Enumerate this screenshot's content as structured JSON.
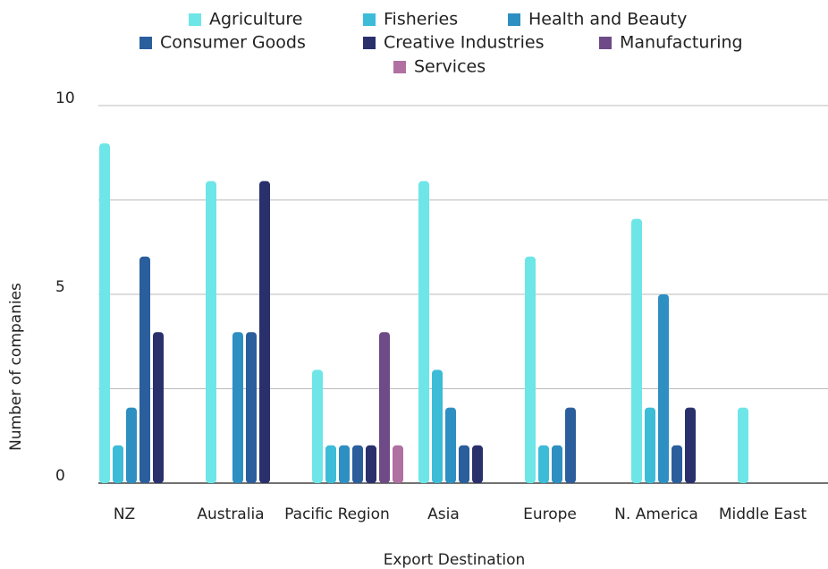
{
  "chart_data": {
    "type": "bar",
    "categories": [
      "NZ",
      "Australia",
      "Pacific Region",
      "Asia",
      "Europe",
      "N. America",
      "Middle East"
    ],
    "series": [
      {
        "name": "Agriculture",
        "color": "#6ee6e8",
        "values": [
          9,
          8,
          3,
          8,
          6,
          7,
          2
        ]
      },
      {
        "name": "Fisheries",
        "color": "#3dbcd8",
        "values": [
          1,
          0,
          1,
          3,
          1,
          2,
          0
        ]
      },
      {
        "name": "Health and Beauty",
        "color": "#2e8fc2",
        "values": [
          2,
          4,
          1,
          2,
          1,
          5,
          0
        ]
      },
      {
        "name": "Consumer Goods",
        "color": "#2b5e9c",
        "values": [
          6,
          4,
          1,
          1,
          2,
          1,
          0
        ]
      },
      {
        "name": "Creative Industries",
        "color": "#2a306c",
        "values": [
          4,
          8,
          1,
          1,
          0,
          2,
          0
        ]
      },
      {
        "name": "Manufacturing",
        "color": "#6e4a87",
        "values": [
          0,
          0,
          4,
          0,
          0,
          0,
          0
        ]
      },
      {
        "name": "Services",
        "color": "#b070a2",
        "values": [
          0,
          0,
          1,
          0,
          0,
          0,
          0
        ]
      }
    ],
    "xlabel": "Export Destination",
    "ylabel": "Number of companies",
    "ylim": [
      0,
      10
    ],
    "yticks": [
      0,
      5,
      10
    ],
    "ygrid": [
      0,
      2.5,
      5,
      7.5,
      10
    ],
    "grid": true,
    "legend": "top"
  }
}
